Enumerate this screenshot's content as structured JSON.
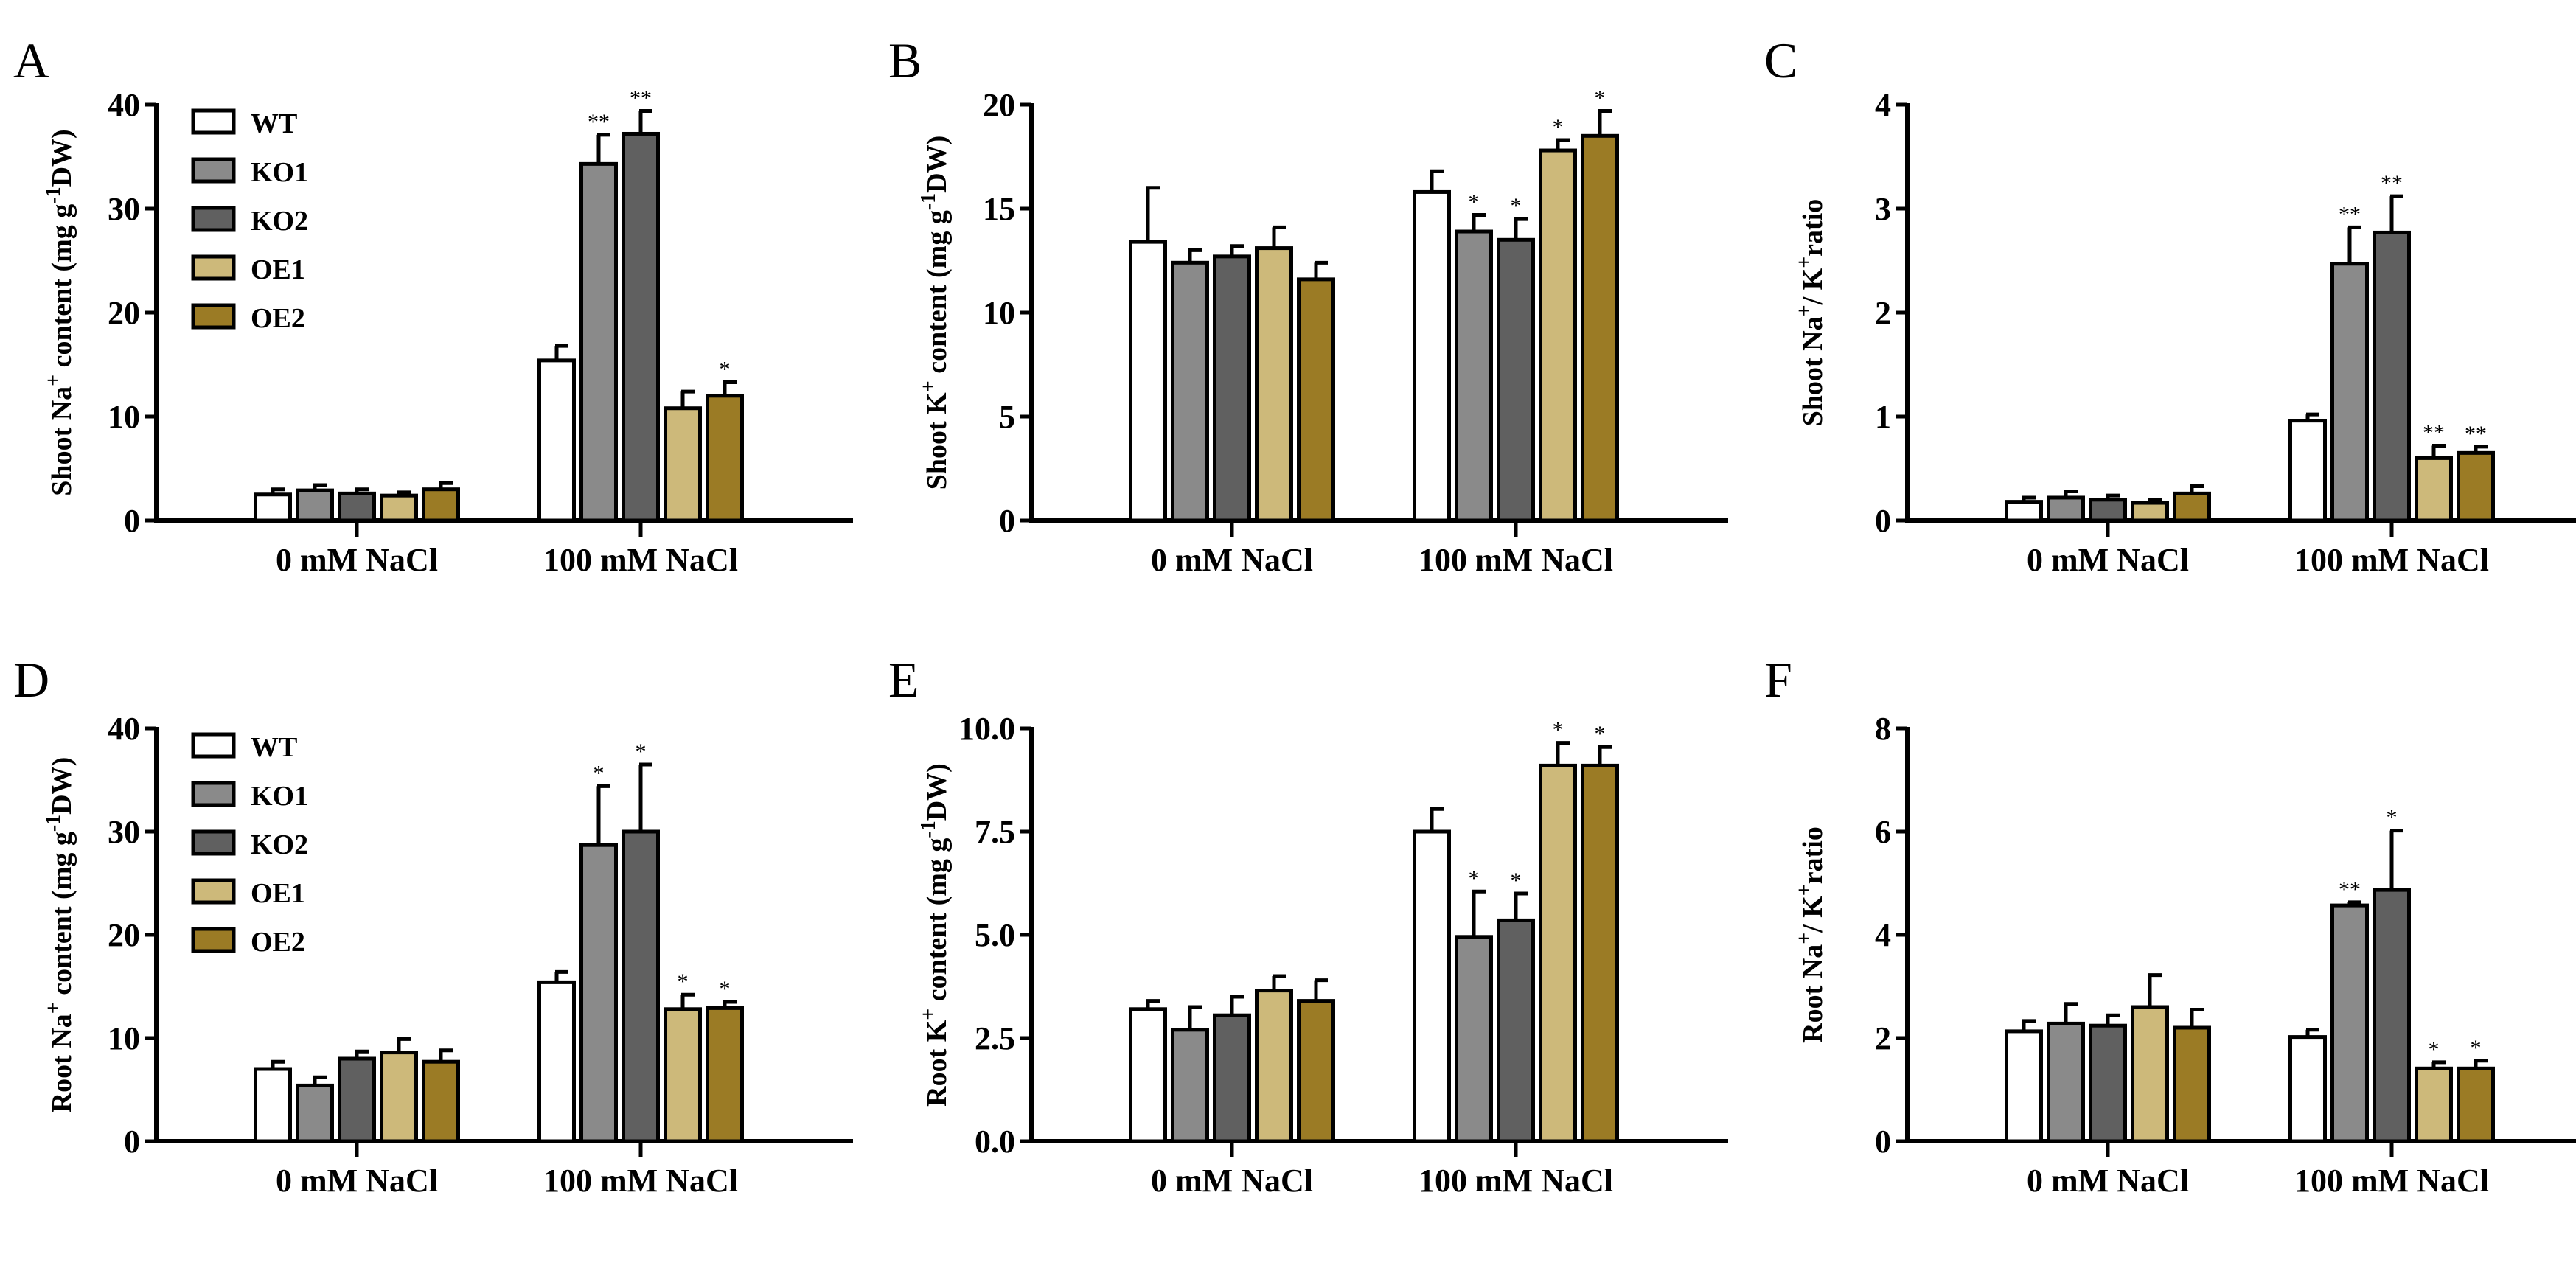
{
  "colors": {
    "WT": "#ffffff",
    "KO1": "#8a8a8a",
    "KO2": "#606060",
    "OE1": "#cdb97a",
    "OE2": "#9b7b25"
  },
  "chart_data": [
    {
      "panel": "A",
      "type": "bar",
      "ylabel_parts": [
        [
          "Shoot Na",
          ""
        ],
        [
          "+",
          "sup"
        ],
        [
          " content (mg g",
          ""
        ],
        [
          "-1",
          "sup"
        ],
        [
          "DW)",
          ""
        ]
      ],
      "categories": [
        "0 mM NaCl",
        "100 mM NaCl"
      ],
      "ylim": [
        0,
        40
      ],
      "yticks": [
        "0",
        "10",
        "20",
        "30",
        "40"
      ],
      "legend": true,
      "series": [
        {
          "name": "WT",
          "values": [
            2.5,
            15.4
          ],
          "errors": [
            0.5,
            1.4
          ],
          "sig": [
            "",
            ""
          ]
        },
        {
          "name": "KO1",
          "values": [
            2.9,
            34.3
          ],
          "errors": [
            0.5,
            2.8
          ],
          "sig": [
            "",
            "**"
          ]
        },
        {
          "name": "KO2",
          "values": [
            2.6,
            37.2
          ],
          "errors": [
            0.4,
            2.2
          ],
          "sig": [
            "",
            "**"
          ]
        },
        {
          "name": "OE1",
          "values": [
            2.4,
            10.8
          ],
          "errors": [
            0.3,
            1.6
          ],
          "sig": [
            "",
            ""
          ]
        },
        {
          "name": "OE2",
          "values": [
            3.0,
            12.0
          ],
          "errors": [
            0.6,
            1.3
          ],
          "sig": [
            "",
            "*"
          ]
        }
      ]
    },
    {
      "panel": "B",
      "type": "bar",
      "ylabel_parts": [
        [
          "Shoot K",
          ""
        ],
        [
          "+",
          "sup"
        ],
        [
          " content (mg g",
          ""
        ],
        [
          "-1",
          "sup"
        ],
        [
          "DW)",
          ""
        ]
      ],
      "categories": [
        "0 mM NaCl",
        "100 mM NaCl"
      ],
      "ylim": [
        0,
        20
      ],
      "yticks": [
        "0",
        "5",
        "10",
        "15",
        "20"
      ],
      "legend": false,
      "series": [
        {
          "name": "WT",
          "values": [
            13.4,
            15.8
          ],
          "errors": [
            2.6,
            1.0
          ],
          "sig": [
            "",
            ""
          ]
        },
        {
          "name": "KO1",
          "values": [
            12.4,
            13.9
          ],
          "errors": [
            0.6,
            0.8
          ],
          "sig": [
            "",
            "*"
          ]
        },
        {
          "name": "KO2",
          "values": [
            12.7,
            13.5
          ],
          "errors": [
            0.5,
            1.0
          ],
          "sig": [
            "",
            "*"
          ]
        },
        {
          "name": "OE1",
          "values": [
            13.1,
            17.8
          ],
          "errors": [
            1.0,
            0.5
          ],
          "sig": [
            "",
            "*"
          ]
        },
        {
          "name": "OE2",
          "values": [
            11.6,
            18.5
          ],
          "errors": [
            0.8,
            1.2
          ],
          "sig": [
            "",
            "*"
          ]
        }
      ]
    },
    {
      "panel": "C",
      "type": "bar",
      "ylabel_parts": [
        [
          "Shoot Na",
          ""
        ],
        [
          "+",
          "sup"
        ],
        [
          "/ K",
          ""
        ],
        [
          "+",
          "sup"
        ],
        [
          "ratio",
          ""
        ]
      ],
      "categories": [
        "0 mM NaCl",
        "100 mM NaCl"
      ],
      "ylim": [
        0,
        4
      ],
      "yticks": [
        "0",
        "1",
        "2",
        "3",
        "4"
      ],
      "legend": false,
      "series": [
        {
          "name": "WT",
          "values": [
            0.18,
            0.96
          ],
          "errors": [
            0.04,
            0.06
          ],
          "sig": [
            "",
            ""
          ]
        },
        {
          "name": "KO1",
          "values": [
            0.22,
            2.47
          ],
          "errors": [
            0.06,
            0.35
          ],
          "sig": [
            "",
            "**"
          ]
        },
        {
          "name": "KO2",
          "values": [
            0.2,
            2.77
          ],
          "errors": [
            0.04,
            0.35
          ],
          "sig": [
            "",
            "**"
          ]
        },
        {
          "name": "OE1",
          "values": [
            0.17,
            0.6
          ],
          "errors": [
            0.03,
            0.12
          ],
          "sig": [
            "",
            "**"
          ]
        },
        {
          "name": "OE2",
          "values": [
            0.26,
            0.65
          ],
          "errors": [
            0.07,
            0.06
          ],
          "sig": [
            "",
            "**"
          ]
        }
      ]
    },
    {
      "panel": "D",
      "type": "bar",
      "ylabel_parts": [
        [
          "Root Na",
          ""
        ],
        [
          "+",
          "sup"
        ],
        [
          " content (mg g",
          ""
        ],
        [
          "-1",
          "sup"
        ],
        [
          "DW)",
          ""
        ]
      ],
      "categories": [
        "0 mM NaCl",
        "100 mM NaCl"
      ],
      "ylim": [
        0,
        40
      ],
      "yticks": [
        "0",
        "10",
        "20",
        "30",
        "40"
      ],
      "legend": true,
      "series": [
        {
          "name": "WT",
          "values": [
            7.0,
            15.4
          ],
          "errors": [
            0.7,
            1.0
          ],
          "sig": [
            "",
            ""
          ]
        },
        {
          "name": "KO1",
          "values": [
            5.4,
            28.7
          ],
          "errors": [
            0.8,
            5.7
          ],
          "sig": [
            "",
            "*"
          ]
        },
        {
          "name": "KO2",
          "values": [
            8.0,
            30.0
          ],
          "errors": [
            0.7,
            6.5
          ],
          "sig": [
            "",
            "*"
          ]
        },
        {
          "name": "OE1",
          "values": [
            8.6,
            12.8
          ],
          "errors": [
            1.3,
            1.4
          ],
          "sig": [
            "",
            "*"
          ]
        },
        {
          "name": "OE2",
          "values": [
            7.7,
            12.9
          ],
          "errors": [
            1.1,
            0.6
          ],
          "sig": [
            "",
            "*"
          ]
        }
      ]
    },
    {
      "panel": "E",
      "type": "bar",
      "ylabel_parts": [
        [
          "Root K",
          ""
        ],
        [
          "+",
          "sup"
        ],
        [
          " content (mg g",
          ""
        ],
        [
          "-1",
          "sup"
        ],
        [
          "DW)",
          ""
        ]
      ],
      "categories": [
        "0 mM NaCl",
        "100 mM NaCl"
      ],
      "ylim": [
        0,
        10
      ],
      "yticks": [
        "0.0",
        "2.5",
        "5.0",
        "7.5",
        "10.0"
      ],
      "legend": false,
      "series": [
        {
          "name": "WT",
          "values": [
            3.2,
            7.5
          ],
          "errors": [
            0.2,
            0.55
          ],
          "sig": [
            "",
            ""
          ]
        },
        {
          "name": "KO1",
          "values": [
            2.7,
            4.95
          ],
          "errors": [
            0.55,
            1.1
          ],
          "sig": [
            "",
            "*"
          ]
        },
        {
          "name": "KO2",
          "values": [
            3.05,
            5.35
          ],
          "errors": [
            0.45,
            0.65
          ],
          "sig": [
            "",
            "*"
          ]
        },
        {
          "name": "OE1",
          "values": [
            3.65,
            9.1
          ],
          "errors": [
            0.35,
            0.55
          ],
          "sig": [
            "",
            "*"
          ]
        },
        {
          "name": "OE2",
          "values": [
            3.4,
            9.1
          ],
          "errors": [
            0.5,
            0.45
          ],
          "sig": [
            "",
            "*"
          ]
        }
      ]
    },
    {
      "panel": "F",
      "type": "bar",
      "ylabel_parts": [
        [
          "Root  Na",
          ""
        ],
        [
          "+",
          "sup"
        ],
        [
          "/ K",
          ""
        ],
        [
          "+",
          "sup"
        ],
        [
          "ratio",
          ""
        ]
      ],
      "categories": [
        "0 mM NaCl",
        "100 mM NaCl"
      ],
      "ylim": [
        0,
        8
      ],
      "yticks": [
        "0",
        "2",
        "4",
        "6",
        "8"
      ],
      "legend": false,
      "series": [
        {
          "name": "WT",
          "values": [
            2.13,
            2.02
          ],
          "errors": [
            0.2,
            0.14
          ],
          "sig": [
            "",
            ""
          ]
        },
        {
          "name": "KO1",
          "values": [
            2.28,
            4.57
          ],
          "errors": [
            0.38,
            0.06
          ],
          "sig": [
            "",
            "**"
          ]
        },
        {
          "name": "KO2",
          "values": [
            2.24,
            4.87
          ],
          "errors": [
            0.2,
            1.15
          ],
          "sig": [
            "",
            "*"
          ]
        },
        {
          "name": "OE1",
          "values": [
            2.6,
            1.41
          ],
          "errors": [
            0.62,
            0.12
          ],
          "sig": [
            "",
            "*"
          ]
        },
        {
          "name": "OE2",
          "values": [
            2.2,
            1.41
          ],
          "errors": [
            0.35,
            0.15
          ],
          "sig": [
            "",
            "*"
          ]
        }
      ]
    }
  ]
}
